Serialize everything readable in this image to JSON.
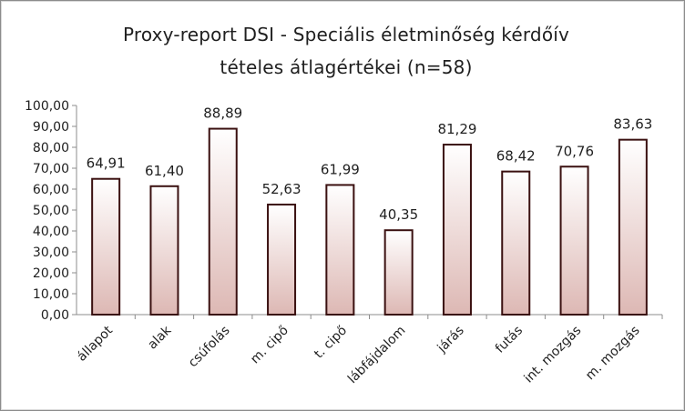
{
  "chart_data": {
    "type": "bar",
    "title_line1": "Proxy-report  DSI - Speciális  életminőség  kérdőív",
    "title_line2": "tételes  átlagértékei  (n=58)",
    "categories": [
      "állapot",
      "alak",
      "csúfolás",
      "m. cipő",
      "t. cipő",
      "lábfájdalom",
      "járás",
      "futás",
      "int. mozgás",
      "m. mozgás"
    ],
    "values": [
      64.91,
      61.4,
      88.89,
      52.63,
      61.99,
      40.35,
      81.29,
      68.42,
      70.76,
      83.63
    ],
    "value_labels": [
      "64,91",
      "61,40",
      "88,89",
      "52,63",
      "61,99",
      "40,35",
      "81,29",
      "68,42",
      "70,76",
      "83,63"
    ],
    "y_ticks": [
      "0,00",
      "10,00",
      "20,00",
      "30,00",
      "40,00",
      "50,00",
      "60,00",
      "70,00",
      "80,00",
      "90,00",
      "100,00"
    ],
    "ylim": [
      0,
      100
    ],
    "grid": false,
    "legend": "none",
    "colors": {
      "bar_top": "#ffffff",
      "bar_bottom": "#ddb8b4",
      "bar_border": "#3a1010",
      "axis": "#8c8c8c"
    }
  }
}
